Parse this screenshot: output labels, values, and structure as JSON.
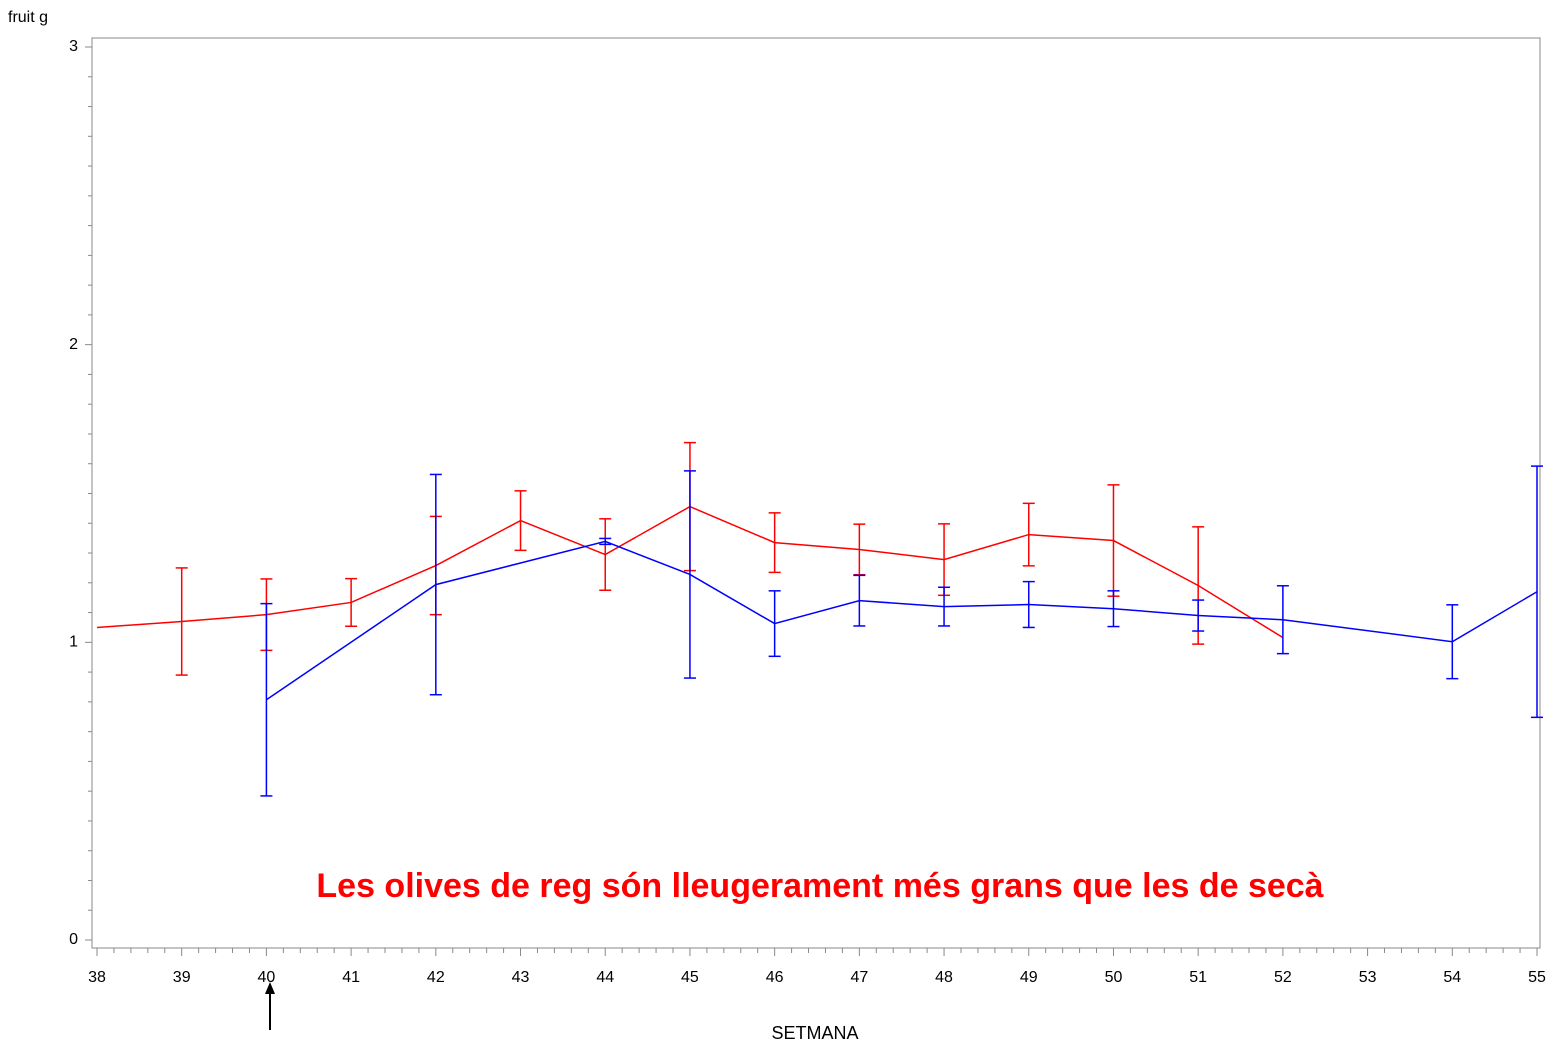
{
  "chart_data": {
    "type": "line",
    "ylabel": "fruit g",
    "xlabel": "SETMANA",
    "annotation": "Les olives de reg són lleugerament més grans que les de secà",
    "xlim": [
      38,
      55
    ],
    "xticks": [
      38,
      39,
      40,
      41,
      42,
      43,
      44,
      45,
      46,
      47,
      48,
      49,
      50,
      51,
      52,
      53,
      54,
      55
    ],
    "ylim": [
      0,
      3
    ],
    "yticks": [
      0,
      1,
      2,
      3
    ],
    "xminor": 4,
    "yminor": 9,
    "series": [
      {
        "color": "#ff0000",
        "x": [
          38,
          39,
          40,
          41,
          42,
          43,
          44,
          45,
          46,
          47,
          48,
          49,
          50,
          51,
          52
        ],
        "values": [
          1.05,
          1.07,
          1.093,
          1.134,
          1.258,
          1.409,
          1.295,
          1.456,
          1.335,
          1.312,
          1.278,
          1.362,
          1.342,
          1.191,
          1.016
        ],
        "errors": [
          null,
          0.18,
          0.12,
          0.08,
          0.165,
          0.1,
          0.12,
          0.215,
          0.1,
          0.085,
          0.12,
          0.105,
          0.187,
          0.197,
          null
        ]
      },
      {
        "color": "#0000ff",
        "x": [
          40,
          42,
          44,
          45,
          46,
          47,
          48,
          49,
          50,
          51,
          52,
          54,
          55
        ],
        "values": [
          0.807,
          1.194,
          1.339,
          1.228,
          1.063,
          1.14,
          1.12,
          1.127,
          1.113,
          1.09,
          1.076,
          1.002,
          1.17
        ],
        "errors": [
          0.323,
          0.37,
          0.01,
          0.348,
          0.11,
          0.085,
          0.065,
          0.077,
          0.06,
          0.052,
          0.114,
          0.124,
          0.422
        ]
      }
    ]
  }
}
